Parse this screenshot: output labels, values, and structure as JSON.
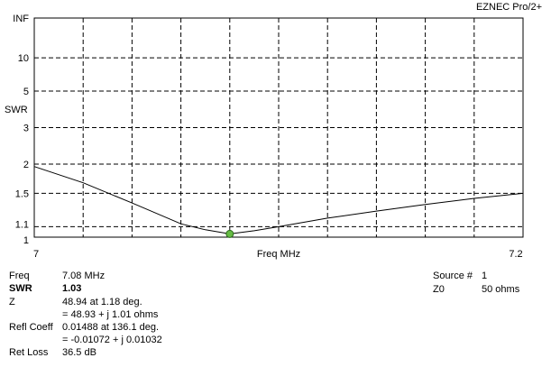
{
  "app": {
    "brand": "EZNEC Pro/2+"
  },
  "chart_data": {
    "type": "line",
    "ylabel": "SWR",
    "xlabel": "Freq MHz",
    "xlim": [
      7,
      7.2
    ],
    "x_ticks": [
      "7",
      "7.2"
    ],
    "y_scale": "swr (reciprocal-reflection)",
    "y_ticks": [
      "INF",
      "10",
      "5",
      "3",
      "2",
      "1.5",
      "1.1",
      "1"
    ],
    "grid": true,
    "grid_style": "dashed",
    "series": [
      {
        "x": [
          7.0,
          7.02,
          7.04,
          7.06,
          7.07,
          7.08,
          7.09,
          7.1,
          7.12,
          7.14,
          7.16,
          7.18,
          7.2
        ],
        "y": [
          1.95,
          1.66,
          1.37,
          1.13,
          1.07,
          1.03,
          1.06,
          1.1,
          1.19,
          1.27,
          1.35,
          1.43,
          1.5
        ]
      }
    ],
    "marker": {
      "x": 7.08,
      "y": 1.03,
      "color": "#66bb44"
    }
  },
  "readout": {
    "freq_label": "Freq",
    "freq_value": "7.08 MHz",
    "swr_label": "SWR",
    "swr_value": "1.03",
    "z_label": "Z",
    "z_polar": "48.94 at 1.18 deg.",
    "z_rect": "= 48.93 + j 1.01 ohms",
    "refl_label": "Refl Coeff",
    "refl_polar": "0.01488 at 136.1 deg.",
    "refl_rect": "= -0.01072 + j 0.01032",
    "retloss_label": "Ret Loss",
    "retloss_value": "36.5 dB",
    "source_label": "Source #",
    "source_value": "1",
    "z0_label": "Z0",
    "z0_value": "50 ohms"
  }
}
